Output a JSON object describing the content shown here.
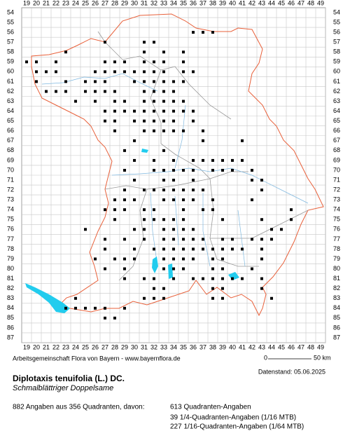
{
  "grid": {
    "columns": [
      19,
      20,
      21,
      22,
      23,
      24,
      25,
      26,
      27,
      28,
      29,
      30,
      31,
      32,
      33,
      34,
      35,
      36,
      37,
      38,
      39,
      40,
      41,
      42,
      43,
      44,
      45,
      46,
      47,
      48,
      49
    ],
    "rows": [
      54,
      55,
      56,
      57,
      58,
      59,
      60,
      61,
      62,
      63,
      64,
      65,
      66,
      67,
      68,
      69,
      70,
      71,
      72,
      73,
      74,
      75,
      76,
      77,
      78,
      79,
      80,
      81,
      82,
      83,
      84,
      85,
      86,
      87
    ]
  },
  "footer": {
    "credit": "Arbeitsgemeinschaft Flora von Bayern - www.bayernflora.de",
    "scale_start": "0",
    "scale_end": "50 km",
    "date": "Datenstand: 05.06.2025"
  },
  "species": {
    "name": "Diplotaxis tenuifolia (L.) DC.",
    "common_name": "Schmalblättriger Doppelsame"
  },
  "summary": {
    "total": "882 Angaben aus 356 Quadranten, davon:",
    "breakdown": [
      "613 Quadranten-Angaben",
      "39 1/4-Quadranten-Angaben (1/16 MTB)",
      "227 1/16-Quadranten-Angaben (1/64 MTB)"
    ]
  }
}
